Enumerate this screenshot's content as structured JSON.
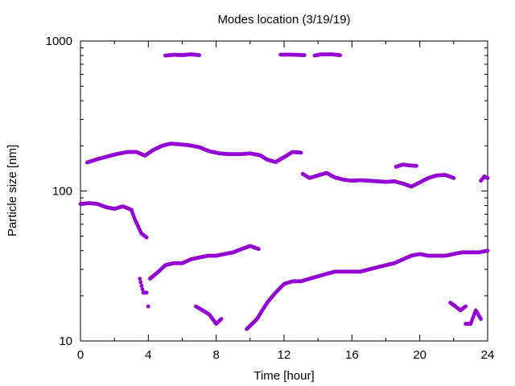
{
  "chart_data": {
    "type": "scatter",
    "title": "Modes location (3/19/19)",
    "xlabel": "Time [hour]",
    "ylabel": "Particle size [nm]",
    "xlim": [
      0,
      24
    ],
    "ylim": [
      10,
      1000
    ],
    "yscale": "log",
    "xticks": [
      "0",
      "4",
      "8",
      "12",
      "16",
      "20",
      "24"
    ],
    "yticks": [
      "10",
      "100",
      "1000"
    ],
    "grid": false,
    "legend": "none",
    "marker_color": "#9400d3",
    "segments": [
      {
        "x": [
          5.0,
          5.5,
          6.0,
          6.5,
          7.0
        ],
        "y": [
          800,
          810,
          805,
          815,
          805
        ]
      },
      {
        "x": [
          11.8,
          12.3,
          12.8,
          13.2
        ],
        "y": [
          810,
          812,
          808,
          805
        ]
      },
      {
        "x": [
          13.8,
          14.2,
          14.8,
          15.3
        ],
        "y": [
          800,
          815,
          815,
          805
        ]
      },
      {
        "x": [
          0.4,
          1.0,
          1.6,
          2.2,
          2.8,
          3.3,
          3.8,
          4.3,
          4.8,
          5.3,
          5.8,
          6.4,
          7.0,
          7.6,
          8.2,
          8.8,
          9.4,
          10.0,
          10.6,
          11.0,
          11.5,
          12.0,
          12.5,
          13.0
        ],
        "y": [
          155,
          163,
          170,
          177,
          182,
          182,
          172,
          188,
          200,
          207,
          205,
          202,
          196,
          184,
          178,
          176,
          176,
          178,
          173,
          162,
          156,
          168,
          182,
          180
        ]
      },
      {
        "x": [
          13.1,
          13.5,
          14.0,
          14.5,
          15.0,
          15.5,
          16.0,
          16.5,
          17.0,
          17.5,
          18.0,
          18.5,
          19.0,
          19.5,
          20.0,
          20.5,
          21.0,
          21.5,
          22.0
        ],
        "y": [
          130,
          122,
          127,
          132,
          123,
          119,
          117,
          118,
          117,
          116,
          115,
          116,
          112,
          107,
          114,
          122,
          127,
          128,
          122
        ]
      },
      {
        "x": [
          18.6,
          19.0,
          19.4,
          19.8
        ],
        "y": [
          145,
          150,
          148,
          147
        ]
      },
      {
        "x": [
          23.6,
          23.8,
          24.0
        ],
        "y": [
          117,
          125,
          122
        ]
      },
      {
        "x": [
          0.0,
          0.5,
          1.0,
          1.5,
          2.0,
          2.5,
          3.0,
          3.2,
          3.4,
          3.6,
          3.9
        ],
        "y": [
          82,
          83,
          82,
          78,
          76,
          79,
          75,
          65,
          58,
          52,
          49
        ]
      },
      {
        "x": [
          3.5,
          3.7,
          3.9
        ],
        "y": [
          26,
          21,
          21
        ]
      },
      {
        "x": [
          4.0
        ],
        "y": [
          17
        ]
      },
      {
        "x": [
          4.1,
          4.6,
          5.0,
          5.5,
          6.0,
          6.5,
          7.0,
          7.5,
          8.0,
          8.5,
          9.0,
          9.5,
          10.0,
          10.5
        ],
        "y": [
          26,
          29,
          32,
          33,
          33,
          35,
          36,
          37,
          37,
          38,
          39,
          41,
          43,
          41
        ]
      },
      {
        "x": [
          6.8,
          7.2,
          7.6,
          8.0,
          8.3
        ],
        "y": [
          17,
          16,
          15,
          13,
          14
        ]
      },
      {
        "x": [
          9.8,
          10.4,
          11.0,
          11.5,
          12.0,
          12.5,
          13.0,
          13.5,
          14.0,
          14.5,
          15.0,
          15.5,
          16.0,
          16.5,
          17.0,
          17.5,
          18.0,
          18.5,
          19.0,
          19.5,
          20.0,
          20.5,
          21.0,
          21.5,
          22.0,
          22.5,
          23.0,
          23.5,
          24.0
        ],
        "y": [
          12,
          14,
          18,
          21,
          24,
          25,
          25,
          26,
          27,
          28,
          29,
          29,
          29,
          29,
          30,
          31,
          32,
          33,
          35,
          37,
          38,
          37,
          37,
          37,
          38,
          39,
          39,
          39,
          40
        ]
      },
      {
        "x": [
          21.8,
          22.1,
          22.4,
          22.7
        ],
        "y": [
          18,
          17,
          16,
          17
        ]
      },
      {
        "x": [
          22.7,
          23.0,
          23.3,
          23.6
        ],
        "y": [
          13,
          13,
          16,
          14
        ]
      }
    ]
  }
}
